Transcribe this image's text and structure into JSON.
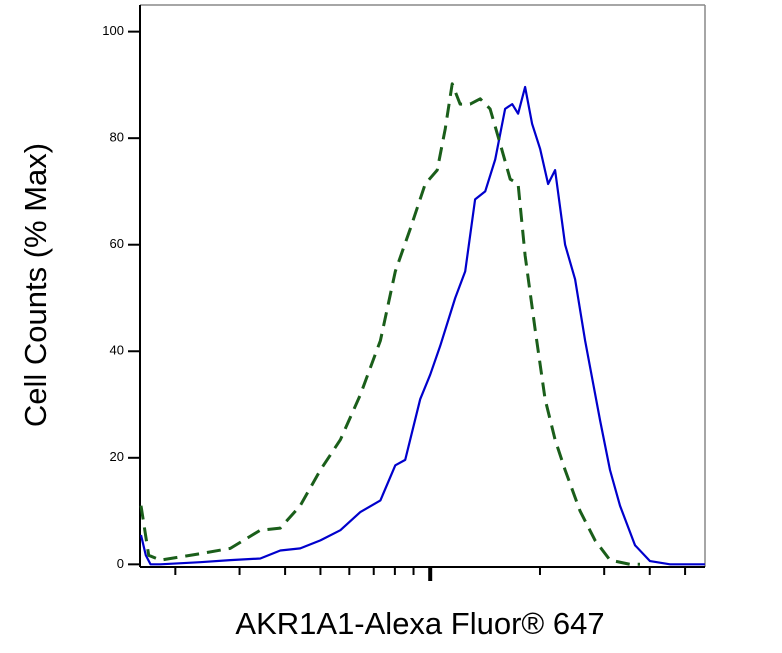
{
  "chart_data": {
    "type": "line",
    "xlabel": "AKR1A1-Alexa Fluor® 647",
    "ylabel": "Cell Counts (% Max)",
    "xscale": "log",
    "xlim": [
      160,
      5670
    ],
    "xticks": [
      200,
      300,
      400,
      500,
      600,
      700,
      800,
      900,
      1000,
      2000,
      3000,
      4000,
      5000
    ],
    "x_major_ticks": [
      1000
    ],
    "ylim": [
      -0.5,
      105
    ],
    "yticks": [
      0,
      20,
      40,
      60,
      80,
      100
    ],
    "series": [
      {
        "color": "#0000cc",
        "style": "solid",
        "x": [
          161,
          166,
          171,
          182,
          234,
          283,
          342,
          388,
          440,
          500,
          567,
          643,
          730,
          802,
          854,
          939,
          1000,
          1065,
          1171,
          1247,
          1328,
          1415,
          1507,
          1605,
          1678,
          1742,
          1821,
          1903,
          2002,
          2105,
          2200,
          2344,
          2496,
          2659,
          2923,
          3113,
          3315,
          3644,
          4006,
          4545,
          5667
        ],
        "values": [
          5.5,
          1.7,
          0,
          0,
          0.4,
          0.8,
          1.1,
          2.6,
          3,
          4.5,
          6.4,
          9.8,
          12,
          18.6,
          19.6,
          31,
          35.6,
          41,
          50,
          55,
          68.5,
          70,
          76,
          85.5,
          86.4,
          84.6,
          89.6,
          82.7,
          78,
          71.4,
          74,
          60,
          53.5,
          42,
          27,
          17.7,
          11,
          3.6,
          0.6,
          0,
          0
        ]
      },
      {
        "color": "#1a5e1a",
        "style": "dashed",
        "x": [
          161,
          169,
          182,
          234,
          283,
          342,
          388,
          440,
          500,
          567,
          643,
          730,
          802,
          882,
          969,
          1045,
          1099,
          1149,
          1208,
          1287,
          1371,
          1460,
          1555,
          1657,
          1742,
          1821,
          1940,
          2066,
          2200,
          2344,
          2576,
          2832,
          3113,
          3532,
          3761
        ],
        "values": [
          11,
          1.7,
          0.8,
          2,
          3,
          6.4,
          6.8,
          11,
          17.7,
          23.4,
          31.8,
          42,
          55,
          63,
          71.4,
          74,
          81.7,
          90.2,
          86.4,
          86.4,
          87.4,
          85.5,
          79,
          72.3,
          71.4,
          58,
          44,
          31,
          23.4,
          17.7,
          10,
          4.5,
          0.8,
          0,
          0
        ]
      }
    ]
  }
}
